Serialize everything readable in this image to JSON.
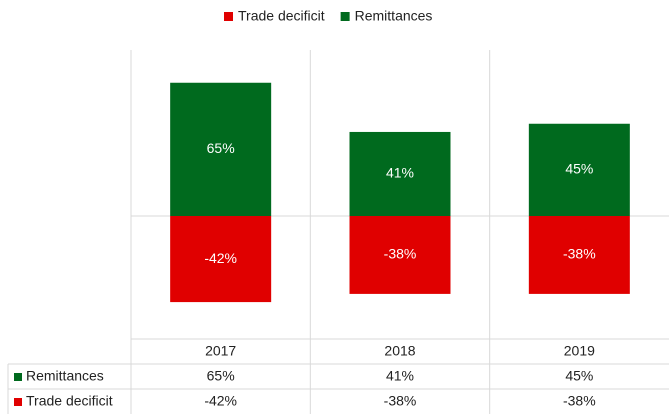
{
  "chart_data": {
    "type": "bar",
    "categories": [
      "2017",
      "2018",
      "2019"
    ],
    "series": [
      {
        "name": "Remittances",
        "color": "#006a1e",
        "values": [
          65,
          41,
          45
        ],
        "value_labels": [
          "65%",
          "41%",
          "45%"
        ]
      },
      {
        "name": "Trade decificit",
        "color": "#e00000",
        "values": [
          -42,
          -38,
          -38
        ],
        "value_labels": [
          "-42%",
          "-38%",
          "-38%"
        ]
      }
    ],
    "ylim": [
      -60,
      80
    ]
  }
}
